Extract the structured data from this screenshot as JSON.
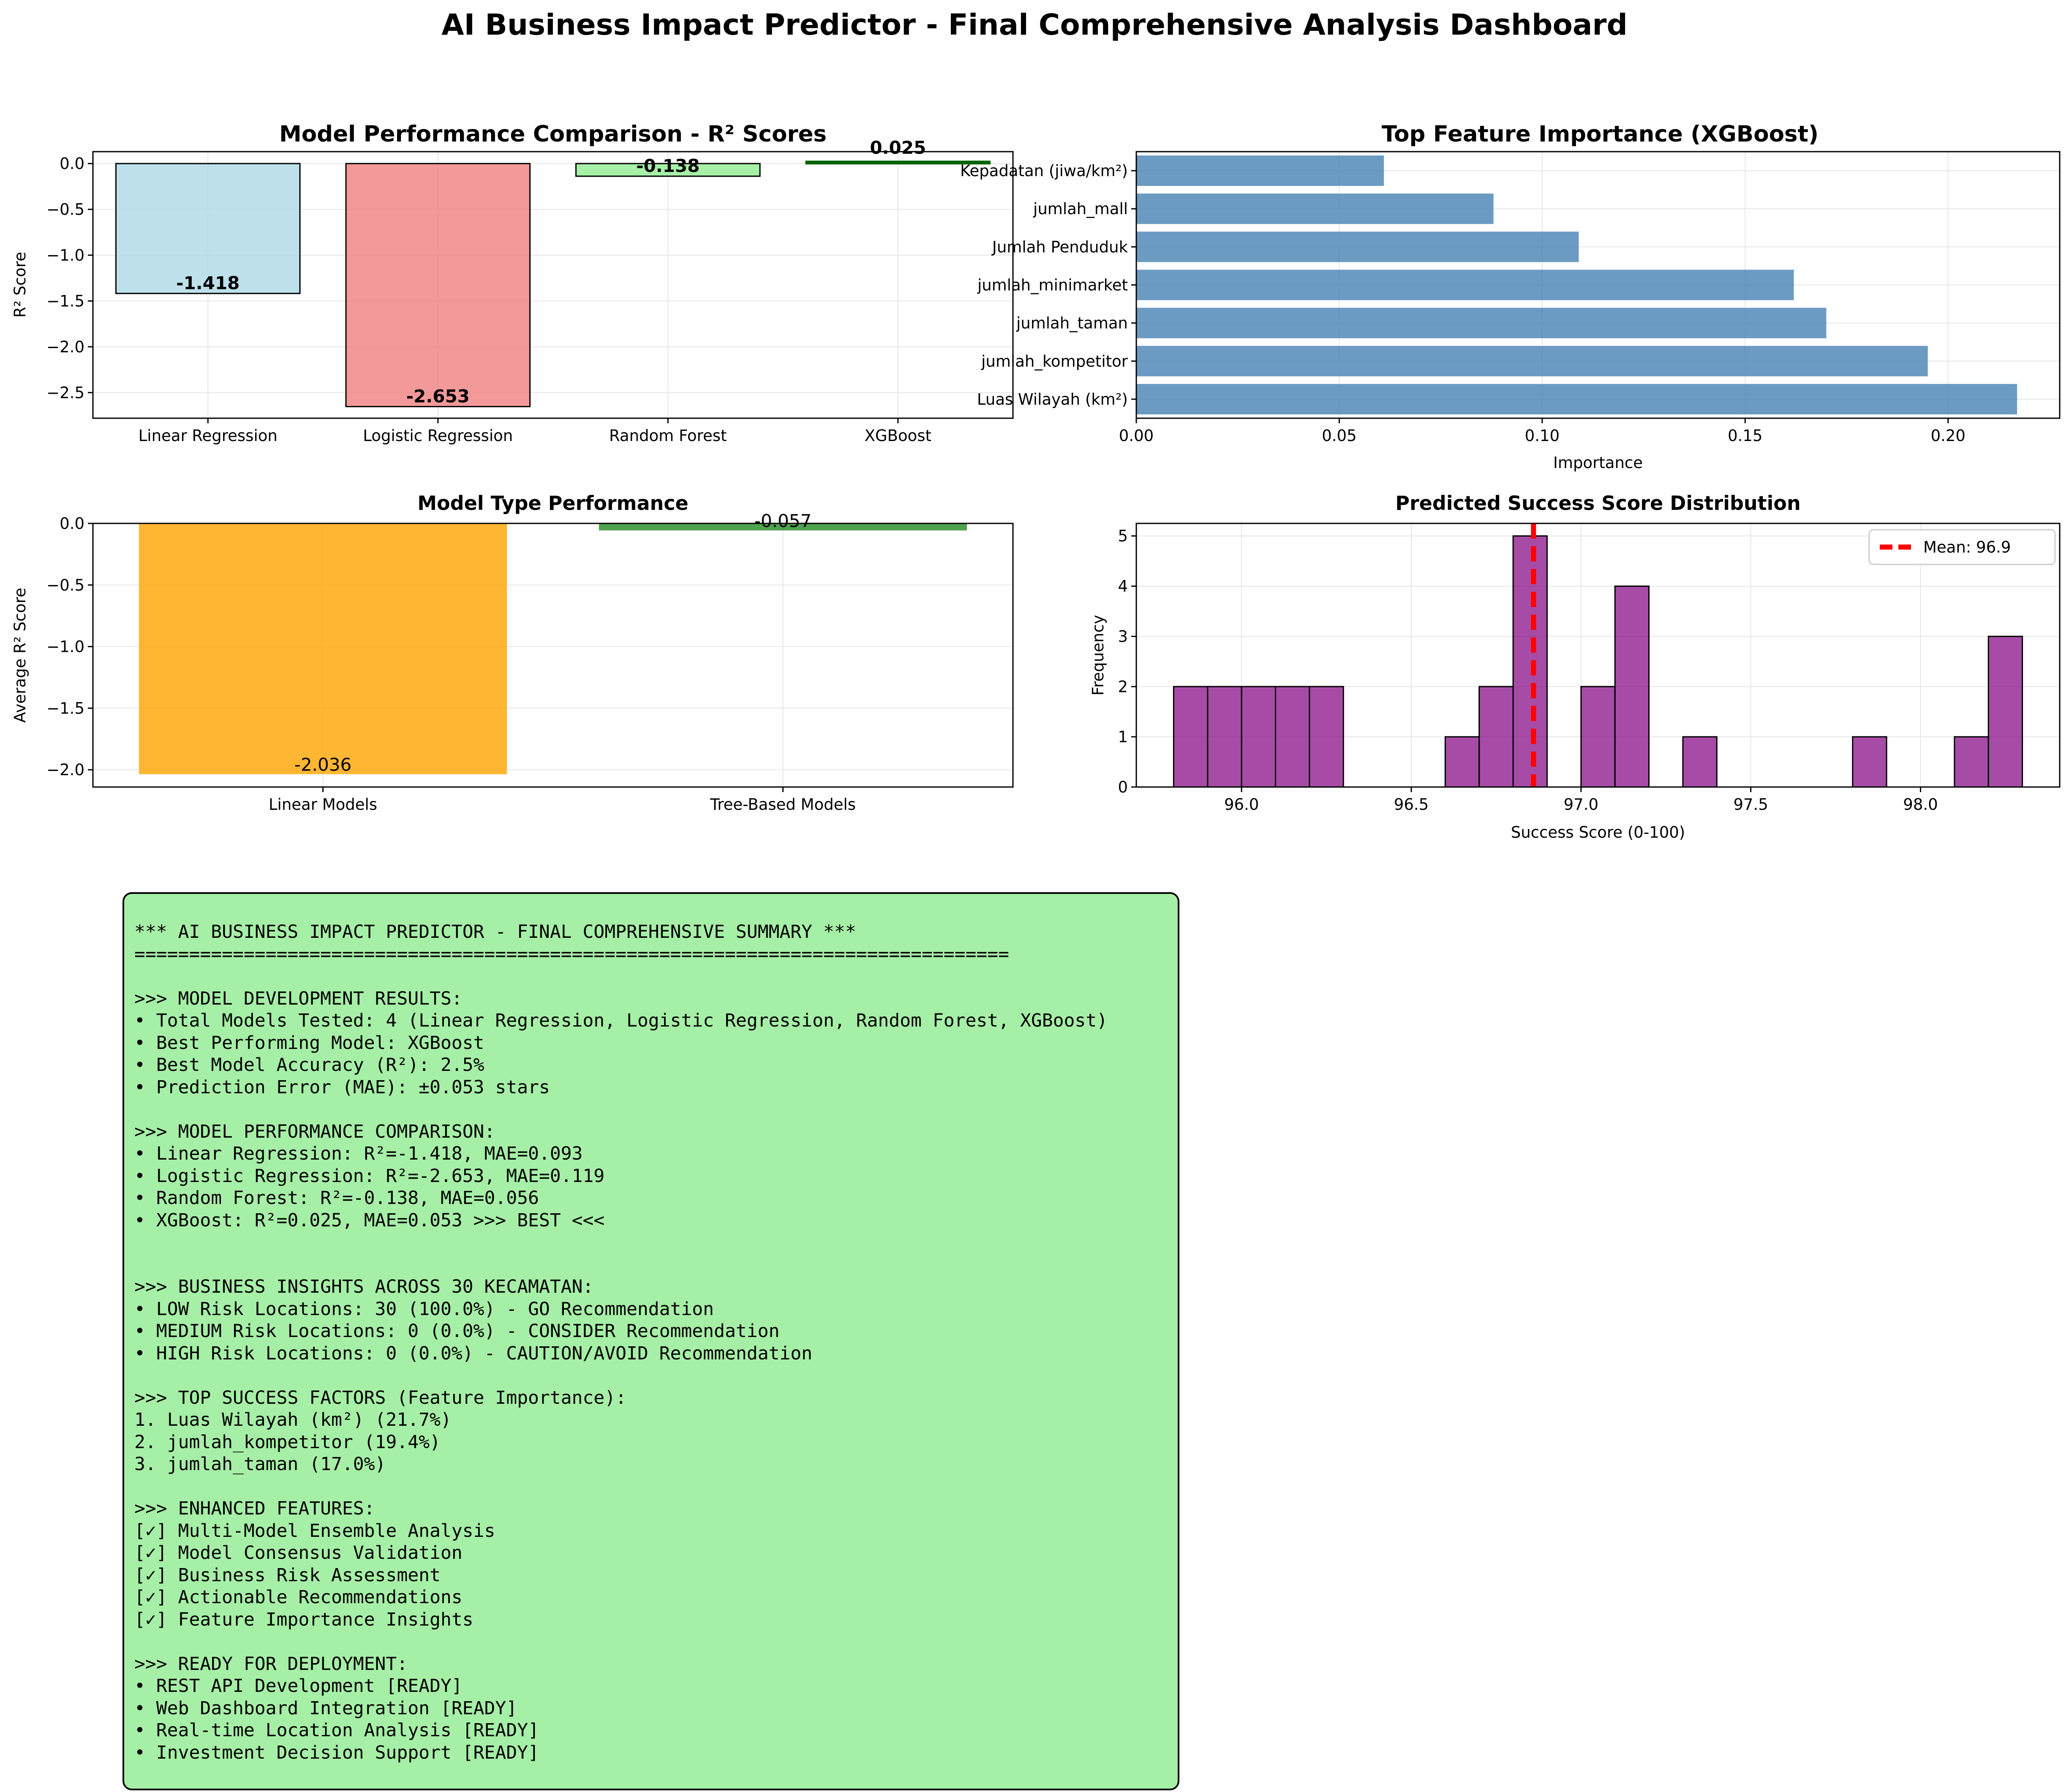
{
  "page_title": "AI Business Impact Predictor - Final Comprehensive Analysis Dashboard",
  "colors": {
    "linear": "#add8e6",
    "logistic": "#f08080",
    "rf": "#90ee90",
    "xgb": "#006400",
    "feature": "#4682b4",
    "linear_models": "#ffa500",
    "tree_models": "#228b22",
    "hist": "#800080",
    "mean_line": "#ff0000",
    "summary_bg": "#a6efa6"
  },
  "chart_data": [
    {
      "type": "bar",
      "title": "Model Performance Comparison - R² Scores",
      "xlabel": "",
      "ylabel": "R² Score",
      "categories": [
        "Linear Regression",
        "Logistic Regression",
        "Random Forest",
        "XGBoost"
      ],
      "values": [
        -1.418,
        -2.653,
        -0.138,
        0.025
      ],
      "value_labels": [
        "-1.418",
        "-2.653",
        "-0.138",
        "0.025"
      ],
      "ylim": [
        -2.78,
        0.13
      ],
      "yticks": [
        0.0,
        -0.5,
        -1.0,
        -1.5,
        -2.0,
        -2.5
      ],
      "ytick_labels": [
        "0.0",
        "−0.5",
        "−1.0",
        "−1.5",
        "−2.0",
        "−2.5"
      ],
      "grid": true
    },
    {
      "type": "bar-horizontal",
      "title": "Top Feature Importance (XGBoost)",
      "xlabel": "Importance",
      "ylabel": "",
      "categories": [
        "Luas Wilayah (km²)",
        "jumlah_kompetitor",
        "jumlah_taman",
        "jumlah_minimarket",
        "Jumlah Penduduk",
        "jumlah_mall",
        "Kepadatan (jiwa/km²)"
      ],
      "values": [
        0.217,
        0.195,
        0.17,
        0.162,
        0.109,
        0.088,
        0.061
      ],
      "xlim": [
        0,
        0.2275
      ],
      "xticks": [
        0.0,
        0.05,
        0.1,
        0.15,
        0.2
      ],
      "xtick_labels": [
        "0.00",
        "0.05",
        "0.10",
        "0.15",
        "0.20"
      ],
      "grid": true
    },
    {
      "type": "bar",
      "title": "Model Type Performance",
      "xlabel": "",
      "ylabel": "Average R² Score",
      "categories": [
        "Linear Models",
        "Tree-Based Models"
      ],
      "values": [
        -2.036,
        -0.057
      ],
      "value_labels": [
        "-2.036",
        "-0.057"
      ],
      "ylim": [
        -2.14,
        0.0
      ],
      "yticks": [
        0.0,
        -0.5,
        -1.0,
        -1.5,
        -2.0
      ],
      "ytick_labels": [
        "0.0",
        "−0.5",
        "−1.0",
        "−1.5",
        "−2.0"
      ],
      "grid": true
    },
    {
      "type": "histogram",
      "title": "Predicted Success Score Distribution",
      "xlabel": "Success Score (0-100)",
      "ylabel": "Frequency",
      "bins": [
        {
          "x0": 95.8,
          "x1": 95.9,
          "count": 2
        },
        {
          "x0": 95.9,
          "x1": 96.0,
          "count": 2
        },
        {
          "x0": 96.0,
          "x1": 96.1,
          "count": 2
        },
        {
          "x0": 96.1,
          "x1": 96.2,
          "count": 2
        },
        {
          "x0": 96.2,
          "x1": 96.3,
          "count": 2
        },
        {
          "x0": 96.6,
          "x1": 96.7,
          "count": 1
        },
        {
          "x0": 96.7,
          "x1": 96.8,
          "count": 2
        },
        {
          "x0": 96.8,
          "x1": 96.9,
          "count": 5
        },
        {
          "x0": 97.0,
          "x1": 97.1,
          "count": 2
        },
        {
          "x0": 97.1,
          "x1": 97.2,
          "count": 4
        },
        {
          "x0": 97.3,
          "x1": 97.4,
          "count": 1
        },
        {
          "x0": 97.8,
          "x1": 97.9,
          "count": 1
        },
        {
          "x0": 98.1,
          "x1": 98.2,
          "count": 1
        },
        {
          "x0": 98.2,
          "x1": 98.3,
          "count": 3
        }
      ],
      "mean": 96.86,
      "legend": "Mean: 96.9",
      "legend_position": "top-right",
      "xlim": [
        95.69,
        98.41
      ],
      "ylim": [
        0,
        5.25
      ],
      "xticks": [
        96.0,
        96.5,
        97.0,
        97.5,
        98.0
      ],
      "xtick_labels": [
        "96.0",
        "96.5",
        "97.0",
        "97.5",
        "98.0"
      ],
      "yticks": [
        0,
        1,
        2,
        3,
        4,
        5
      ],
      "ytick_labels": [
        "0",
        "1",
        "2",
        "3",
        "4",
        "5"
      ],
      "grid": true
    }
  ],
  "summary_lines": [
    "*** AI BUSINESS IMPACT PREDICTOR - FINAL COMPREHENSIVE SUMMARY ***",
    "================================================================================",
    "",
    ">>> MODEL DEVELOPMENT RESULTS:",
    "• Total Models Tested: 4 (Linear Regression, Logistic Regression, Random Forest, XGBoost)",
    "• Best Performing Model: XGBoost",
    "• Best Model Accuracy (R²): 2.5%",
    "• Prediction Error (MAE): ±0.053 stars",
    "",
    ">>> MODEL PERFORMANCE COMPARISON:",
    "• Linear Regression: R²=-1.418, MAE=0.093",
    "• Logistic Regression: R²=-2.653, MAE=0.119",
    "• Random Forest: R²=-0.138, MAE=0.056",
    "• XGBoost: R²=0.025, MAE=0.053 >>> BEST <<<",
    "",
    "",
    ">>> BUSINESS INSIGHTS ACROSS 30 KECAMATAN:",
    "• LOW Risk Locations: 30 (100.0%) - GO Recommendation",
    "• MEDIUM Risk Locations: 0 (0.0%) - CONSIDER Recommendation",
    "• HIGH Risk Locations: 0 (0.0%) - CAUTION/AVOID Recommendation",
    "",
    ">>> TOP SUCCESS FACTORS (Feature Importance):",
    "1. Luas Wilayah (km²) (21.7%)",
    "2. jumlah_kompetitor (19.4%)",
    "3. jumlah_taman (17.0%)",
    "",
    ">>> ENHANCED FEATURES:",
    "[✓] Multi-Model Ensemble Analysis",
    "[✓] Model Consensus Validation",
    "[✓] Business Risk Assessment",
    "[✓] Actionable Recommendations",
    "[✓] Feature Importance Insights",
    "",
    ">>> READY FOR DEPLOYMENT:",
    "• REST API Development [READY]",
    "• Web Dashboard Integration [READY]",
    "• Real-time Location Analysis [READY]",
    "• Investment Decision Support [READY]"
  ]
}
